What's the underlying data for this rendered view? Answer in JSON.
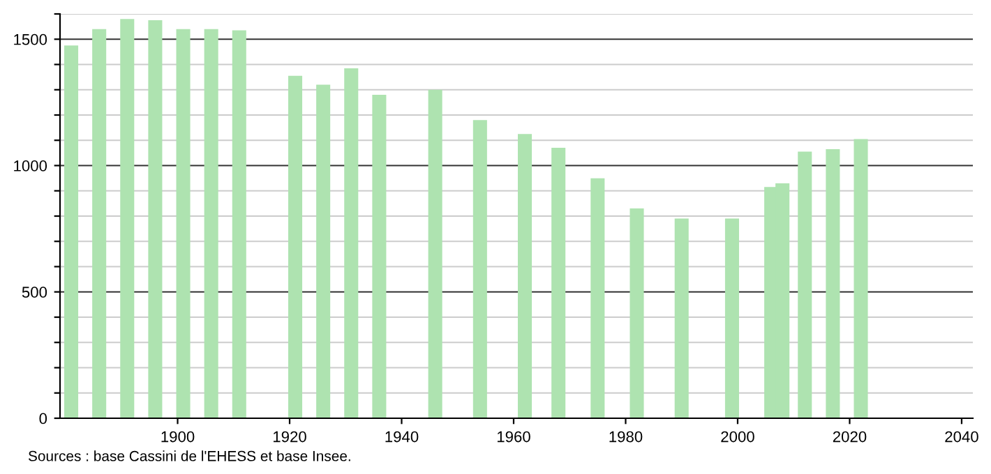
{
  "chart_data": {
    "type": "bar",
    "color": "#aee3b0",
    "x": [
      1881,
      1886,
      1891,
      1896,
      1901,
      1906,
      1911,
      1921,
      1926,
      1931,
      1936,
      1946,
      1954,
      1962,
      1968,
      1975,
      1982,
      1990,
      1999,
      2006,
      2008,
      2012,
      2017,
      2022
    ],
    "values": [
      1475,
      1540,
      1580,
      1575,
      1540,
      1540,
      1535,
      1355,
      1320,
      1385,
      1280,
      1300,
      1180,
      1125,
      1070,
      950,
      830,
      790,
      790,
      915,
      930,
      1055,
      1065,
      1105
    ],
    "xlim": [
      1879,
      2042
    ],
    "xticks": [
      1900,
      1920,
      1940,
      1960,
      1980,
      2000,
      2020,
      2040
    ],
    "ylim": [
      0,
      1600
    ],
    "yticks": [
      0,
      {
        "value": 100,
        "label": null
      },
      {
        "value": 200,
        "label": null
      },
      {
        "value": 300,
        "label": null
      },
      {
        "value": 400,
        "label": null
      },
      500,
      {
        "value": 600,
        "label": null
      },
      {
        "value": 700,
        "label": null
      },
      {
        "value": 800,
        "label": null
      },
      {
        "value": 900,
        "label": null
      },
      1000,
      {
        "value": 1100,
        "label": null
      },
      {
        "value": 1200,
        "label": null
      },
      {
        "value": 1300,
        "label": null
      },
      {
        "value": 1400,
        "label": null
      },
      1500,
      {
        "value": 1600,
        "label": null
      }
    ],
    "grid": "y",
    "annotations": [
      "Sources : base Cassini de l'EHESS et base Insee."
    ]
  }
}
